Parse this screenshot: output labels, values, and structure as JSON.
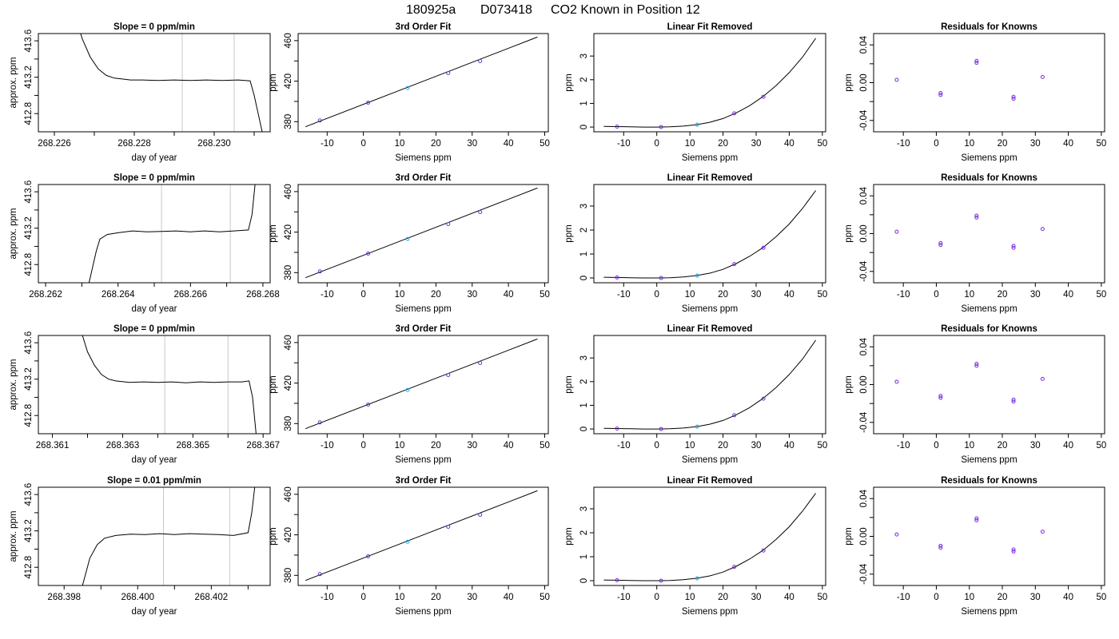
{
  "figure": {
    "title_parts": [
      "180925a",
      "D073418",
      "CO2 Known in Position  12"
    ],
    "colors": {
      "line": "#000000",
      "point": "#7a2be2",
      "point_center": "#2aa8e0",
      "grid": "#c8c8c8"
    }
  },
  "chart_data": [
    {
      "type": "line",
      "row": 0,
      "col": 0,
      "title": "Slope =  0  ppm/min",
      "xlabel": "day of year",
      "ylabel": "approx. ppm",
      "xlim": [
        268.2256,
        268.2314
      ],
      "ylim": [
        412.6,
        413.68
      ],
      "xticks": [
        268.226,
        268.227,
        268.228,
        268.229,
        268.23,
        268.231
      ],
      "xtick_labels": [
        "268.226",
        "",
        "268.228",
        "",
        "268.230",
        ""
      ],
      "yticks": [
        412.8,
        413.0,
        413.2,
        413.4,
        413.6
      ],
      "ytick_labels": [
        "412.8",
        "",
        "413.2",
        "",
        "413.6"
      ],
      "vlines": [
        268.2292,
        268.2305
      ],
      "x": [
        268.2265,
        268.2267,
        268.2269,
        268.2271,
        268.2273,
        268.2275,
        268.2277,
        268.2279,
        268.2282,
        268.2286,
        268.229,
        268.2294,
        268.2298,
        268.2302,
        268.2306,
        268.2309,
        268.231,
        268.2311,
        268.2312
      ],
      "y": [
        413.9,
        413.62,
        413.42,
        413.29,
        413.22,
        413.19,
        413.18,
        413.17,
        413.17,
        413.165,
        413.17,
        413.165,
        413.17,
        413.165,
        413.17,
        413.16,
        413.0,
        412.8,
        412.6
      ]
    },
    {
      "type": "scatter+line",
      "row": 0,
      "col": 1,
      "title": "3rd Order Fit",
      "xlabel": "Siemens ppm",
      "ylabel": "ppm",
      "xlim": [
        -18,
        51
      ],
      "ylim": [
        370,
        467
      ],
      "xticks": [
        -10,
        0,
        10,
        20,
        30,
        40,
        50
      ],
      "xtick_labels": [
        "-10",
        "0",
        "10",
        "20",
        "30",
        "40",
        "50"
      ],
      "yticks": [
        380,
        400,
        420,
        440,
        460
      ],
      "ytick_labels": [
        "380",
        "",
        "420",
        "",
        "460"
      ],
      "points_x": [
        -12,
        1.3,
        12.2,
        23.4,
        32.2
      ],
      "points_y": [
        381.2,
        398.8,
        413.2,
        428.0,
        439.8
      ],
      "curve_x": [
        -16,
        48
      ],
      "curve_y": [
        375.0,
        463.5
      ]
    },
    {
      "type": "scatter+line",
      "row": 0,
      "col": 2,
      "title": "Linear Fit Removed",
      "xlabel": "Siemens ppm",
      "ylabel": "ppm",
      "xlim": [
        -19,
        51
      ],
      "ylim": [
        -0.2,
        3.95
      ],
      "xticks": [
        -10,
        0,
        10,
        20,
        30,
        40,
        50
      ],
      "xtick_labels": [
        "-10",
        "0",
        "10",
        "20",
        "30",
        "40",
        "50"
      ],
      "yticks": [
        0,
        1,
        2,
        3
      ],
      "ytick_labels": [
        "0",
        "1",
        "2",
        "3"
      ],
      "points_x": [
        -12,
        1.3,
        12.2,
        23.4,
        32.2
      ],
      "points_y": [
        0.02,
        0.0,
        0.1,
        0.58,
        1.28
      ],
      "curve_x": [
        -16,
        -12,
        -8,
        -4,
        0,
        4,
        8,
        12,
        16,
        20,
        24,
        28,
        32,
        36,
        40,
        44,
        48
      ],
      "curve_y": [
        0.03,
        0.02,
        0.01,
        0.0,
        0.0,
        0.01,
        0.04,
        0.1,
        0.2,
        0.36,
        0.6,
        0.9,
        1.28,
        1.75,
        2.3,
        2.95,
        3.75
      ]
    },
    {
      "type": "scatter",
      "row": 0,
      "col": 3,
      "title": "Residuals for Knowns",
      "xlabel": "Siemens ppm",
      "ylabel": "ppm",
      "xlim": [
        -19,
        51
      ],
      "ylim": [
        -0.052,
        0.052
      ],
      "xticks": [
        -10,
        0,
        10,
        20,
        30,
        40,
        50
      ],
      "xtick_labels": [
        "-10",
        "0",
        "10",
        "20",
        "30",
        "40",
        "50"
      ],
      "yticks": [
        -0.04,
        -0.02,
        0,
        0.02,
        0.04
      ],
      "ytick_labels": [
        "-0.04",
        "",
        "0.00",
        "",
        "0.04"
      ],
      "points_x": [
        -12,
        1.3,
        1.3,
        12.2,
        12.2,
        23.4,
        23.4,
        32.2
      ],
      "points_y": [
        0.003,
        -0.011,
        -0.013,
        0.023,
        0.021,
        -0.015,
        -0.017,
        0.006
      ]
    },
    {
      "type": "line",
      "row": 1,
      "col": 0,
      "title": "Slope =  0  ppm/min",
      "xlabel": "day of year",
      "ylabel": "approx. ppm",
      "xlim": [
        268.2618,
        268.2682
      ],
      "ylim": [
        412.6,
        413.68
      ],
      "xticks": [
        268.262,
        268.263,
        268.264,
        268.265,
        268.266,
        268.267,
        268.268
      ],
      "xtick_labels": [
        "268.262",
        "",
        "268.264",
        "",
        "268.266",
        "",
        "268.268"
      ],
      "yticks": [
        412.8,
        413.0,
        413.2,
        413.4,
        413.6
      ],
      "ytick_labels": [
        "412.8",
        "",
        "413.2",
        "",
        "413.6"
      ],
      "vlines": [
        268.2652,
        268.2671
      ],
      "x": [
        268.2632,
        268.2634,
        268.2635,
        268.2637,
        268.264,
        268.2644,
        268.2648,
        268.2652,
        268.2656,
        268.266,
        268.2664,
        268.2668,
        268.2672,
        268.2676,
        268.2677,
        268.2678
      ],
      "y": [
        412.6,
        412.95,
        413.08,
        413.13,
        413.15,
        413.17,
        413.16,
        413.165,
        413.17,
        413.16,
        413.17,
        413.16,
        413.17,
        413.18,
        413.35,
        413.75
      ]
    },
    {
      "type": "scatter+line",
      "row": 1,
      "col": 1,
      "title": "3rd Order Fit",
      "xlabel": "Siemens ppm",
      "ylabel": "ppm",
      "xlim": [
        -18,
        51
      ],
      "ylim": [
        370,
        467
      ],
      "xticks": [
        -10,
        0,
        10,
        20,
        30,
        40,
        50
      ],
      "xtick_labels": [
        "-10",
        "0",
        "10",
        "20",
        "30",
        "40",
        "50"
      ],
      "yticks": [
        380,
        400,
        420,
        440,
        460
      ],
      "ytick_labels": [
        "380",
        "",
        "420",
        "",
        "460"
      ],
      "points_x": [
        -12,
        1.3,
        12.2,
        23.4,
        32.2
      ],
      "points_y": [
        381.2,
        398.8,
        413.2,
        428.0,
        439.8
      ],
      "curve_x": [
        -16,
        48
      ],
      "curve_y": [
        375.0,
        463.5
      ]
    },
    {
      "type": "scatter+line",
      "row": 1,
      "col": 2,
      "title": "Linear Fit Removed",
      "xlabel": "Siemens ppm",
      "ylabel": "ppm",
      "xlim": [
        -19,
        51
      ],
      "ylim": [
        -0.2,
        3.9
      ],
      "xticks": [
        -10,
        0,
        10,
        20,
        30,
        40,
        50
      ],
      "xtick_labels": [
        "-10",
        "0",
        "10",
        "20",
        "30",
        "40",
        "50"
      ],
      "yticks": [
        0,
        1,
        2,
        3
      ],
      "ytick_labels": [
        "0",
        "1",
        "2",
        "3"
      ],
      "points_x": [
        -12,
        1.3,
        12.2,
        23.4,
        32.2
      ],
      "points_y": [
        0.02,
        0.0,
        0.1,
        0.58,
        1.26
      ],
      "curve_x": [
        -16,
        -12,
        -8,
        -4,
        0,
        4,
        8,
        12,
        16,
        20,
        24,
        28,
        32,
        36,
        40,
        44,
        48
      ],
      "curve_y": [
        0.03,
        0.02,
        0.01,
        0.0,
        0.0,
        0.01,
        0.04,
        0.1,
        0.2,
        0.36,
        0.6,
        0.9,
        1.26,
        1.72,
        2.25,
        2.9,
        3.65
      ]
    },
    {
      "type": "scatter",
      "row": 1,
      "col": 3,
      "title": "Residuals for Knowns",
      "xlabel": "Siemens ppm",
      "ylabel": "ppm",
      "xlim": [
        -19,
        51
      ],
      "ylim": [
        -0.052,
        0.052
      ],
      "xticks": [
        -10,
        0,
        10,
        20,
        30,
        40,
        50
      ],
      "xtick_labels": [
        "-10",
        "0",
        "10",
        "20",
        "30",
        "40",
        "50"
      ],
      "yticks": [
        -0.04,
        -0.02,
        0,
        0.02,
        0.04
      ],
      "ytick_labels": [
        "-0.04",
        "",
        "0.00",
        "",
        "0.04"
      ],
      "points_x": [
        -12,
        1.3,
        1.3,
        12.2,
        12.2,
        23.4,
        23.4,
        32.2
      ],
      "points_y": [
        0.002,
        -0.01,
        -0.012,
        0.019,
        0.017,
        -0.013,
        -0.015,
        0.005
      ]
    },
    {
      "type": "line",
      "row": 2,
      "col": 0,
      "title": "Slope =  0  ppm/min",
      "xlabel": "day of year",
      "ylabel": "approx. ppm",
      "xlim": [
        268.3606,
        268.3672
      ],
      "ylim": [
        412.6,
        413.68
      ],
      "xticks": [
        268.361,
        268.362,
        268.363,
        268.364,
        268.365,
        268.366,
        268.367
      ],
      "xtick_labels": [
        "268.361",
        "",
        "268.363",
        "",
        "268.365",
        "",
        "268.367"
      ],
      "yticks": [
        412.8,
        413.0,
        413.2,
        413.4,
        413.6
      ],
      "ytick_labels": [
        "412.8",
        "",
        "413.2",
        "",
        "413.6"
      ],
      "vlines": [
        268.3642,
        268.366
      ],
      "x": [
        268.3618,
        268.362,
        268.3622,
        268.3624,
        268.3626,
        268.3628,
        268.3632,
        268.3636,
        268.364,
        268.3644,
        268.3648,
        268.3652,
        268.3656,
        268.366,
        268.3664,
        268.3666,
        268.3667,
        268.3668
      ],
      "y": [
        413.75,
        413.5,
        413.35,
        413.25,
        413.2,
        413.18,
        413.165,
        413.17,
        413.165,
        413.17,
        413.16,
        413.17,
        413.165,
        413.17,
        413.17,
        413.18,
        413.0,
        412.6
      ]
    },
    {
      "type": "scatter+line",
      "row": 2,
      "col": 1,
      "title": "3rd Order Fit",
      "xlabel": "Siemens ppm",
      "ylabel": "ppm",
      "xlim": [
        -18,
        51
      ],
      "ylim": [
        370,
        467
      ],
      "xticks": [
        -10,
        0,
        10,
        20,
        30,
        40,
        50
      ],
      "xtick_labels": [
        "-10",
        "0",
        "10",
        "20",
        "30",
        "40",
        "50"
      ],
      "yticks": [
        380,
        400,
        420,
        440,
        460
      ],
      "ytick_labels": [
        "380",
        "",
        "420",
        "",
        "460"
      ],
      "points_x": [
        -12,
        1.3,
        12.2,
        23.4,
        32.2
      ],
      "points_y": [
        381.2,
        398.8,
        413.2,
        428.0,
        439.8
      ],
      "curve_x": [
        -16,
        48
      ],
      "curve_y": [
        375.0,
        463.5
      ]
    },
    {
      "type": "scatter+line",
      "row": 2,
      "col": 2,
      "title": "Linear Fit Removed",
      "xlabel": "Siemens ppm",
      "ylabel": "ppm",
      "xlim": [
        -19,
        51
      ],
      "ylim": [
        -0.2,
        3.95
      ],
      "xticks": [
        -10,
        0,
        10,
        20,
        30,
        40,
        50
      ],
      "xtick_labels": [
        "-10",
        "0",
        "10",
        "20",
        "30",
        "40",
        "50"
      ],
      "yticks": [
        0,
        1,
        2,
        3
      ],
      "ytick_labels": [
        "0",
        "1",
        "2",
        "3"
      ],
      "points_x": [
        -12,
        1.3,
        12.2,
        23.4,
        32.2
      ],
      "points_y": [
        0.02,
        0.0,
        0.1,
        0.58,
        1.28
      ],
      "curve_x": [
        -16,
        -12,
        -8,
        -4,
        0,
        4,
        8,
        12,
        16,
        20,
        24,
        28,
        32,
        36,
        40,
        44,
        48
      ],
      "curve_y": [
        0.03,
        0.02,
        0.01,
        0.0,
        0.0,
        0.01,
        0.04,
        0.1,
        0.2,
        0.36,
        0.6,
        0.9,
        1.28,
        1.75,
        2.3,
        2.95,
        3.75
      ]
    },
    {
      "type": "scatter",
      "row": 2,
      "col": 3,
      "title": "Residuals for Knowns",
      "xlabel": "Siemens ppm",
      "ylabel": "ppm",
      "xlim": [
        -19,
        51
      ],
      "ylim": [
        -0.052,
        0.052
      ],
      "xticks": [
        -10,
        0,
        10,
        20,
        30,
        40,
        50
      ],
      "xtick_labels": [
        "-10",
        "0",
        "10",
        "20",
        "30",
        "40",
        "50"
      ],
      "yticks": [
        -0.04,
        -0.02,
        0,
        0.02,
        0.04
      ],
      "ytick_labels": [
        "-0.04",
        "",
        "0.00",
        "",
        "0.04"
      ],
      "points_x": [
        -12,
        1.3,
        1.3,
        12.2,
        12.2,
        23.4,
        23.4,
        32.2
      ],
      "points_y": [
        0.003,
        -0.012,
        -0.014,
        0.022,
        0.02,
        -0.016,
        -0.018,
        0.006
      ]
    },
    {
      "type": "line",
      "row": 3,
      "col": 0,
      "title": "Slope =  0.01  ppm/min",
      "xlabel": "day of year",
      "ylabel": "approx. ppm",
      "xlim": [
        268.3973,
        268.4036
      ],
      "ylim": [
        412.6,
        413.68
      ],
      "xticks": [
        268.398,
        268.399,
        268.4,
        268.401,
        268.402,
        268.403
      ],
      "xtick_labels": [
        "268.398",
        "",
        "268.400",
        "",
        "268.402",
        ""
      ],
      "yticks": [
        412.8,
        413.0,
        413.2,
        413.4,
        413.6
      ],
      "ytick_labels": [
        "412.8",
        "",
        "413.2",
        "",
        "413.6"
      ],
      "vlines": [
        268.4007,
        268.4025
      ],
      "x": [
        268.3985,
        268.3987,
        268.3989,
        268.3991,
        268.3994,
        268.3998,
        268.4002,
        268.4006,
        268.401,
        268.4014,
        268.4018,
        268.4022,
        268.4026,
        268.403,
        268.4031,
        268.4032
      ],
      "y": [
        412.6,
        412.9,
        413.05,
        413.12,
        413.15,
        413.165,
        413.16,
        413.17,
        413.16,
        413.17,
        413.165,
        413.16,
        413.15,
        413.18,
        413.4,
        413.75
      ]
    },
    {
      "type": "scatter+line",
      "row": 3,
      "col": 1,
      "title": "3rd Order Fit",
      "xlabel": "Siemens ppm",
      "ylabel": "ppm",
      "xlim": [
        -18,
        51
      ],
      "ylim": [
        370,
        467
      ],
      "xticks": [
        -10,
        0,
        10,
        20,
        30,
        40,
        50
      ],
      "xtick_labels": [
        "-10",
        "0",
        "10",
        "20",
        "30",
        "40",
        "50"
      ],
      "yticks": [
        380,
        400,
        420,
        440,
        460
      ],
      "ytick_labels": [
        "380",
        "",
        "420",
        "",
        "460"
      ],
      "points_x": [
        -12,
        1.3,
        12.2,
        23.4,
        32.2
      ],
      "points_y": [
        381.2,
        398.8,
        413.2,
        428.0,
        439.8
      ],
      "curve_x": [
        -16,
        48
      ],
      "curve_y": [
        375.0,
        463.5
      ]
    },
    {
      "type": "scatter+line",
      "row": 3,
      "col": 2,
      "title": "Linear Fit Removed",
      "xlabel": "Siemens ppm",
      "ylabel": "ppm",
      "xlim": [
        -19,
        51
      ],
      "ylim": [
        -0.2,
        3.9
      ],
      "xticks": [
        -10,
        0,
        10,
        20,
        30,
        40,
        50
      ],
      "xtick_labels": [
        "-10",
        "0",
        "10",
        "20",
        "30",
        "40",
        "50"
      ],
      "yticks": [
        0,
        1,
        2,
        3
      ],
      "ytick_labels": [
        "0",
        "1",
        "2",
        "3"
      ],
      "points_x": [
        -12,
        1.3,
        12.2,
        23.4,
        32.2
      ],
      "points_y": [
        0.02,
        0.0,
        0.1,
        0.58,
        1.26
      ],
      "curve_x": [
        -16,
        -12,
        -8,
        -4,
        0,
        4,
        8,
        12,
        16,
        20,
        24,
        28,
        32,
        36,
        40,
        44,
        48
      ],
      "curve_y": [
        0.03,
        0.02,
        0.01,
        0.0,
        0.0,
        0.01,
        0.04,
        0.1,
        0.2,
        0.36,
        0.6,
        0.9,
        1.26,
        1.72,
        2.25,
        2.9,
        3.65
      ]
    },
    {
      "type": "scatter",
      "row": 3,
      "col": 3,
      "title": "Residuals for Knowns",
      "xlabel": "Siemens ppm",
      "ylabel": "ppm",
      "xlim": [
        -19,
        51
      ],
      "ylim": [
        -0.052,
        0.052
      ],
      "xticks": [
        -10,
        0,
        10,
        20,
        30,
        40,
        50
      ],
      "xtick_labels": [
        "-10",
        "0",
        "10",
        "20",
        "30",
        "40",
        "50"
      ],
      "yticks": [
        -0.04,
        -0.02,
        0,
        0.02,
        0.04
      ],
      "ytick_labels": [
        "-0.04",
        "",
        "0.00",
        "",
        "0.04"
      ],
      "points_x": [
        -12,
        1.3,
        1.3,
        12.2,
        12.2,
        23.4,
        23.4,
        32.2
      ],
      "points_y": [
        0.002,
        -0.01,
        -0.012,
        0.019,
        0.017,
        -0.014,
        -0.016,
        0.005
      ]
    }
  ]
}
